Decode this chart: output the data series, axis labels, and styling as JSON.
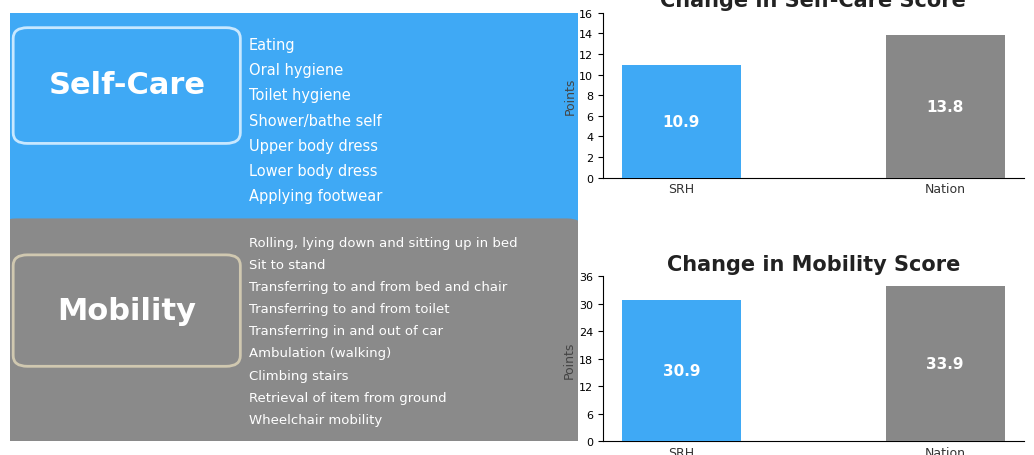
{
  "selfcare_title": "Change in Self-Care Score",
  "mobility_title": "Change in Mobility Score",
  "ylabel": "Points",
  "categories": [
    "SRH",
    "Nation"
  ],
  "selfcare_values": [
    10.9,
    13.8
  ],
  "mobility_values": [
    30.9,
    33.9
  ],
  "bar_colors": [
    "#3fa9f5",
    "#888888"
  ],
  "selfcare_ylim": [
    0,
    16
  ],
  "selfcare_yticks": [
    0,
    2,
    4,
    6,
    8,
    10,
    12,
    14,
    16
  ],
  "mobility_ylim": [
    0,
    36
  ],
  "mobility_yticks": [
    0,
    6,
    12,
    18,
    24,
    30,
    36
  ],
  "blue_bg": "#3fa9f5",
  "gray_bg": "#8a8a8a",
  "white": "#ffffff",
  "selfcare_label": "Self-Care",
  "mobility_label": "Mobility",
  "selfcare_items": [
    "Eating",
    "Oral hygiene",
    "Toilet hygiene",
    "Shower/bathe self",
    "Upper body dress",
    "Lower body dress",
    "Applying footwear"
  ],
  "mobility_items": [
    "Rolling, lying down and sitting up in bed",
    "Sit to stand",
    "Transferring to and from bed and chair",
    "Transferring to and from toilet",
    "Transferring in and out of car",
    "Ambulation (walking)",
    "Climbing stairs",
    "Retrieval of item from ground",
    "Wheelchair mobility"
  ],
  "title_fontsize": 15,
  "bar_label_fontsize": 11,
  "axis_label_fontsize": 9,
  "tick_fontsize": 8,
  "panel_label_fontsize": 22,
  "item_fontsize_sc": 10.5,
  "item_fontsize_mob": 9.5
}
